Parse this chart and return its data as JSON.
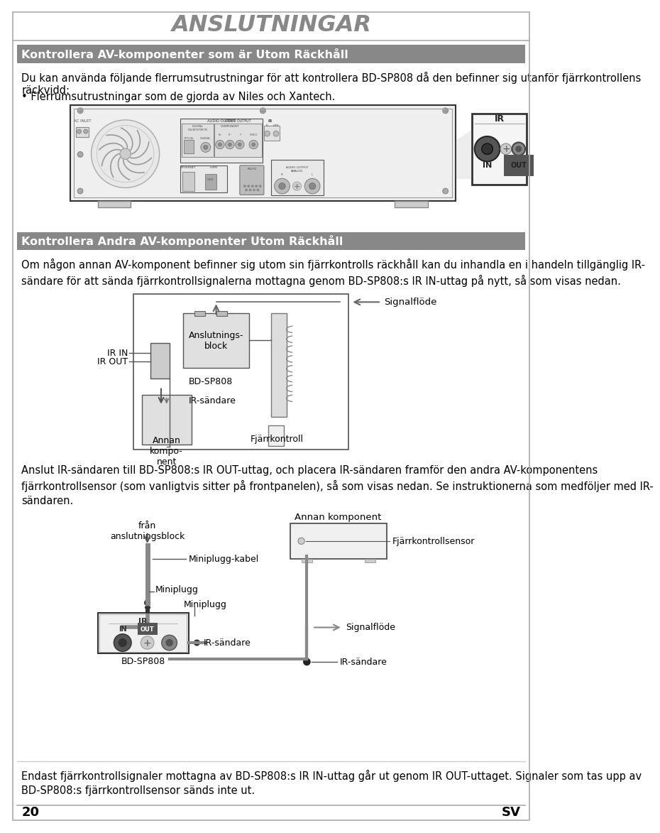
{
  "page_title": "ANSLUTNINGAR",
  "bg_color": "#ffffff",
  "title_text_color": "#888888",
  "section1_header": "Kontrollera AV-komponenter som är Utom Räckhåll",
  "section1_header_bg": "#888888",
  "section1_header_color": "#ffffff",
  "section1_body1": "Du kan använda följande flerrumsutrustningar för att kontrollera BD-SP808 då den befinner sig utanför fjärrkontrollens räckvidd:",
  "section1_bullet": "• Flerrumsutrustningar som de gjorda av Niles och Xantech.",
  "section2_header": "Kontrollera Andra AV-komponenter Utom Räckhåll",
  "section2_header_bg": "#888888",
  "section2_header_color": "#ffffff",
  "section2_body1": "Om någon annan AV-komponent befinner sig utom sin fjärrkontrolls räckhåll kan du inhandla en i handeln tillgänglig IR-\nsändare för att sända fjärrkontrollsignalerna mottagna genom BD-SP808:s IR IN-uttag på nytt, så som visas nedan.",
  "section3_body1": "Anslut IR-sändaren till BD-SP808:s IR OUT-uttag, och placera IR-sändaren framför den andra AV-komponentens\nfjärrkontrollsensor (som vanligtvis sitter på frontpanelen), så som visas nedan. Se instruktionerna som medföljer med IR-\nsändaren.",
  "footer_body": "Endast fjärrkontrollsignaler mottagna av BD-SP808:s IR IN-uttag går ut genom IR OUT-uttaget. Signaler som tas upp av\nBD-SP808:s fjärrkontrollsensor sänds inte ut.",
  "page_number_left": "20",
  "page_number_right": "SV"
}
